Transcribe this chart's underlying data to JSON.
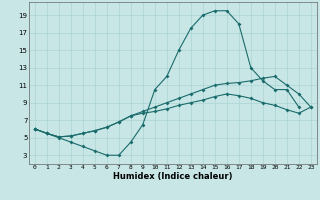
{
  "xlabel": "Humidex (Indice chaleur)",
  "xlim": [
    -0.5,
    23.5
  ],
  "ylim": [
    2,
    20.5
  ],
  "xticks": [
    0,
    1,
    2,
    3,
    4,
    5,
    6,
    7,
    8,
    9,
    10,
    11,
    12,
    13,
    14,
    15,
    16,
    17,
    18,
    19,
    20,
    21,
    22,
    23
  ],
  "yticks": [
    3,
    5,
    7,
    9,
    11,
    13,
    15,
    17,
    19
  ],
  "background_color": "#c8e6e6",
  "grid_color": "#aad4d4",
  "line_color": "#1a6b6b",
  "curve1_x": [
    0,
    1,
    2,
    3,
    4,
    5,
    6,
    7,
    8,
    9,
    10,
    11,
    12,
    13,
    14,
    15,
    16,
    17,
    18,
    19,
    20,
    21,
    22
  ],
  "curve1_y": [
    6,
    5.5,
    5,
    4.5,
    4,
    3.5,
    3,
    3,
    4.5,
    6.5,
    10.5,
    12,
    15,
    17.5,
    19,
    19.5,
    19.5,
    18,
    13,
    11.5,
    10.5,
    10.5,
    8.5
  ],
  "curve2_x": [
    0,
    1,
    2,
    3,
    4,
    5,
    6,
    7,
    8,
    9,
    10,
    11,
    12,
    13,
    14,
    15,
    16,
    17,
    18,
    19,
    20,
    21,
    22,
    23
  ],
  "curve2_y": [
    6,
    5.5,
    5.1,
    5.2,
    5.5,
    5.8,
    6.2,
    6.8,
    7.5,
    8.0,
    8.5,
    9.0,
    9.5,
    10.0,
    10.5,
    11.0,
    11.2,
    11.3,
    11.5,
    11.8,
    12.0,
    11.0,
    10.0,
    8.5
  ],
  "curve3_x": [
    0,
    1,
    2,
    3,
    4,
    5,
    6,
    7,
    8,
    9,
    10,
    11,
    12,
    13,
    14,
    15,
    16,
    17,
    18,
    19,
    20,
    21,
    22,
    23
  ],
  "curve3_y": [
    6,
    5.5,
    5.1,
    5.2,
    5.5,
    5.8,
    6.2,
    6.8,
    7.5,
    7.8,
    8.0,
    8.3,
    8.7,
    9.0,
    9.3,
    9.7,
    10.0,
    9.8,
    9.5,
    9.0,
    8.7,
    8.2,
    7.8,
    8.5
  ]
}
